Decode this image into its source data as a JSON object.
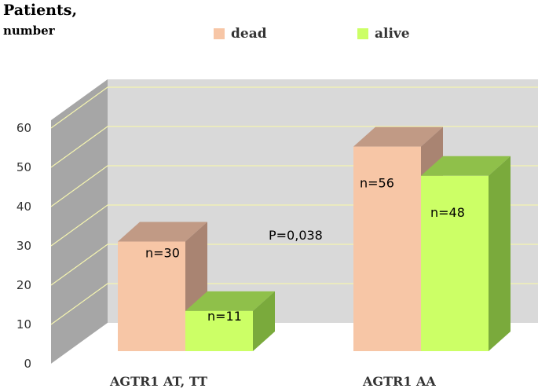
{
  "chart_data": {
    "type": "bar",
    "title": "",
    "ylabel": "Patients,",
    "ylabel_sub": "number",
    "xlabel": "",
    "categories": [
      "AGTR1  AT, TT",
      "AGTR1 AA"
    ],
    "series": [
      {
        "name": "dead",
        "values": [
          30,
          56
        ],
        "labels": [
          "n=30",
          "n=56"
        ]
      },
      {
        "name": "alive",
        "values": [
          11,
          48
        ],
        "labels": [
          "n=11",
          "n=48"
        ]
      }
    ],
    "yticks": [
      "0",
      "10",
      "20",
      "30",
      "40",
      "50",
      "60"
    ],
    "ylim": [
      0,
      60
    ],
    "annotation": "P=0,038",
    "legend_position": "top",
    "grid": true,
    "style": "3d",
    "colors": {
      "dead_front": "#f7c6a6",
      "dead_top": "#c19a85",
      "dead_side": "#a98472",
      "alive_front": "#ccff66",
      "alive_top": "#8fc04a",
      "alive_side": "#7aaa3c",
      "back_wall": "#d9d9d9",
      "side_wall": "#a6a6a6",
      "grid": "#f5f5b0"
    }
  }
}
